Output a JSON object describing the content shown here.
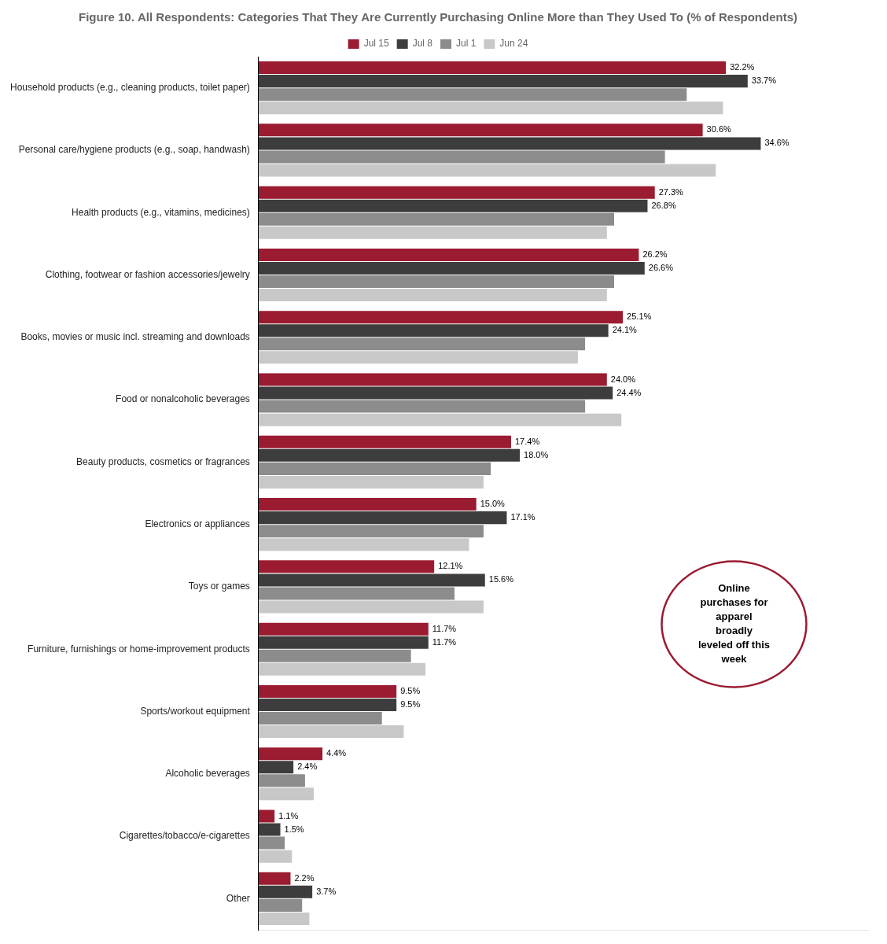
{
  "chart_data": {
    "type": "bar",
    "orientation": "horizontal",
    "title": "Figure 10. All Respondents: Categories That They Are Currently Purchasing Online More than They Used To (% of Respondents)",
    "categories": [
      "Household products (e.g., cleaning products, toilet paper)",
      "Personal care/hygiene products (e.g., soap, handwash)",
      "Health products (e.g., vitamins, medicines)",
      "Clothing, footwear or fashion accessories/jewelry",
      "Books, movies or music incl. streaming and downloads",
      "Food or nonalcoholic beverages",
      "Beauty products, cosmetics or fragrances",
      "Electronics or appliances",
      "Toys or games",
      "Furniture, furnishings or home-improvement products",
      "Sports/workout equipment",
      "Alcoholic beverages",
      "Cigarettes/tobacco/e-cigarettes",
      "Other"
    ],
    "series": [
      {
        "name": "Jul 15",
        "color": "#9B1B30",
        "data_labels": true,
        "values": [
          32.2,
          30.6,
          27.3,
          26.2,
          25.1,
          24.0,
          17.4,
          15.0,
          12.1,
          11.7,
          9.5,
          4.4,
          1.1,
          2.2
        ],
        "value_labels": [
          "32.2%",
          "30.6%",
          "27.3%",
          "26.2%",
          "25.1%",
          "24.0%",
          "17.4%",
          "15.0%",
          "12.1%",
          "11.7%",
          "9.5%",
          "4.4%",
          "1.1%",
          "2.2%"
        ]
      },
      {
        "name": "Jul 8",
        "color": "#3D3D3D",
        "data_labels": true,
        "values": [
          33.7,
          34.6,
          26.8,
          26.6,
          24.1,
          24.4,
          18.0,
          17.1,
          15.6,
          11.7,
          9.5,
          2.4,
          1.5,
          3.7
        ],
        "value_labels": [
          "33.7%",
          "34.6%",
          "26.8%",
          "26.6%",
          "24.1%",
          "24.4%",
          "18.0%",
          "17.1%",
          "15.6%",
          "11.7%",
          "9.5%",
          "2.4%",
          "1.5%",
          "3.7%"
        ]
      },
      {
        "name": "Jul 1",
        "color": "#8C8C8C",
        "values": [
          29.5,
          28.0,
          24.5,
          24.5,
          22.5,
          22.5,
          16.0,
          15.5,
          13.5,
          10.5,
          8.5,
          3.2,
          1.8,
          3.0
        ]
      },
      {
        "name": "Jun 24",
        "color": "#C8C8C8",
        "values": [
          32.0,
          31.5,
          24.0,
          24.0,
          22.0,
          25.0,
          15.5,
          14.5,
          15.5,
          11.5,
          10.0,
          3.8,
          2.3,
          3.5
        ]
      }
    ],
    "xlim": [
      0,
      42
    ],
    "tick_labels": "y",
    "grid": false,
    "legend": "top",
    "annotations": [
      "Online\npurchases for\napparel\nbroadly\nleveled off this\nweek"
    ]
  }
}
